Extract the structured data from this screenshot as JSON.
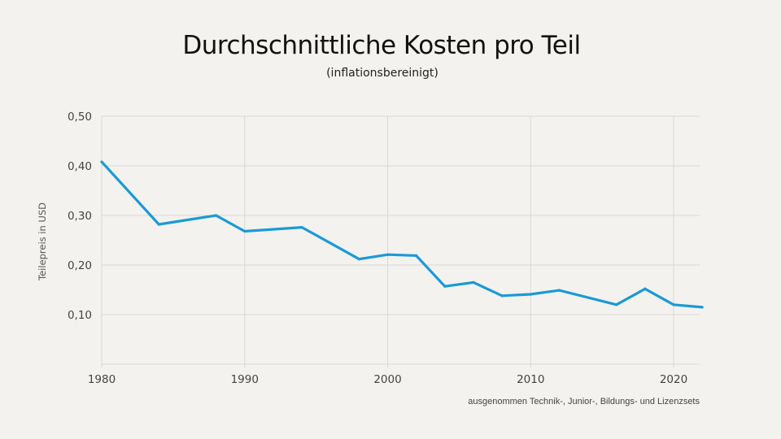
{
  "chart_data": {
    "type": "line",
    "title": "Durchschnittliche Kosten pro Teil",
    "subtitle": "(inflationsbereinigt)",
    "xlabel": "",
    "ylabel": "Teilepreis in USD",
    "footnote": "ausgenommen Technik-, Junior-, Bildungs- und Lizenzsets",
    "xlim": [
      1980,
      2022
    ],
    "ylim": [
      0,
      0.5
    ],
    "grid": true,
    "x_ticks": [
      1980,
      1990,
      2000,
      2010,
      2020
    ],
    "x_tick_labels": [
      "1980",
      "1990",
      "2000",
      "2010",
      "2020"
    ],
    "y_ticks": [
      0.1,
      0.2,
      0.3,
      0.4,
      0.5
    ],
    "y_tick_labels": [
      "0,10",
      "0,20",
      "0,30",
      "0,40",
      "0,50"
    ],
    "series": [
      {
        "name": "Teilepreis",
        "color": "#1a9ad6",
        "x": [
          1980,
          1984,
          1988,
          1990,
          1994,
          1998,
          2000,
          2002,
          2004,
          2006,
          2008,
          2010,
          2012,
          2016,
          2018,
          2020,
          2022
        ],
        "values": [
          0.408,
          0.282,
          0.3,
          0.268,
          0.276,
          0.212,
          0.221,
          0.219,
          0.157,
          0.165,
          0.138,
          0.141,
          0.149,
          0.12,
          0.152,
          0.12,
          0.115
        ]
      }
    ]
  }
}
